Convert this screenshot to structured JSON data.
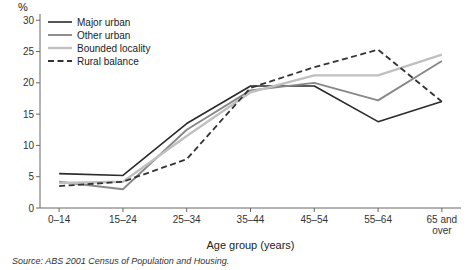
{
  "chart_data": {
    "type": "line",
    "categories": [
      "0–14",
      "15–24",
      "25–34",
      "35–44",
      "45–54",
      "55–64",
      "65 and\nover"
    ],
    "series": [
      {
        "name": "Major urban",
        "color": "#2a2a2a",
        "line_style": "solid",
        "values": [
          5.5,
          5.2,
          13.5,
          19.5,
          19.5,
          13.8,
          17.0
        ]
      },
      {
        "name": "Other urban",
        "color": "#888888",
        "line_style": "solid",
        "values": [
          4.2,
          3.0,
          12.5,
          18.8,
          20.0,
          17.2,
          23.5
        ]
      },
      {
        "name": "Bounded locality",
        "color": "#c0c0c0",
        "line_style": "solid",
        "values": [
          4.0,
          4.2,
          11.5,
          18.5,
          21.2,
          21.2,
          24.5
        ]
      },
      {
        "name": "Rural balance",
        "color": "#333333",
        "line_style": "dashed",
        "values": [
          3.5,
          4.2,
          7.8,
          19.2,
          22.5,
          25.3,
          17.0
        ]
      }
    ],
    "y_label": "%",
    "x_label": "Age group (years)",
    "ylim": [
      0,
      31
    ],
    "yticks": [
      0,
      5,
      10,
      15,
      20,
      25,
      30
    ],
    "grid": false,
    "legend": "upper left",
    "source": "Source: ABS 2001 Census of Population and Housing."
  }
}
